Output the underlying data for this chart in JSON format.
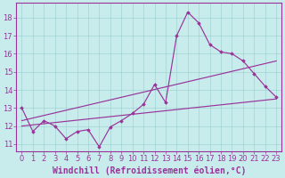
{
  "xlabel": "Windchill (Refroidissement éolien,°C)",
  "background_color": "#c8ecec",
  "line_color": "#993399",
  "xlim": [
    -0.5,
    23.5
  ],
  "ylim": [
    10.6,
    18.8
  ],
  "yticks": [
    11,
    12,
    13,
    14,
    15,
    16,
    17,
    18
  ],
  "xticks": [
    0,
    1,
    2,
    3,
    4,
    5,
    6,
    7,
    8,
    9,
    10,
    11,
    12,
    13,
    14,
    15,
    16,
    17,
    18,
    19,
    20,
    21,
    22,
    23
  ],
  "main_x": [
    0,
    1,
    2,
    3,
    4,
    5,
    6,
    7,
    8,
    9,
    10,
    11,
    12,
    13,
    14,
    15,
    16,
    17,
    18,
    19,
    20,
    21,
    22,
    23
  ],
  "main_y": [
    13.0,
    11.7,
    12.3,
    12.0,
    11.3,
    11.7,
    11.8,
    10.85,
    11.95,
    12.3,
    12.7,
    13.2,
    14.3,
    13.3,
    17.0,
    18.3,
    17.7,
    16.5,
    16.1,
    16.0,
    15.6,
    14.9,
    14.2,
    13.6
  ],
  "line1_x": [
    0,
    23
  ],
  "line1_y": [
    12.0,
    13.5
  ],
  "line2_x": [
    0,
    23
  ],
  "line2_y": [
    12.3,
    15.6
  ],
  "grid_color": "#99cccc",
  "tick_fontsize": 6,
  "xlabel_fontsize": 7
}
